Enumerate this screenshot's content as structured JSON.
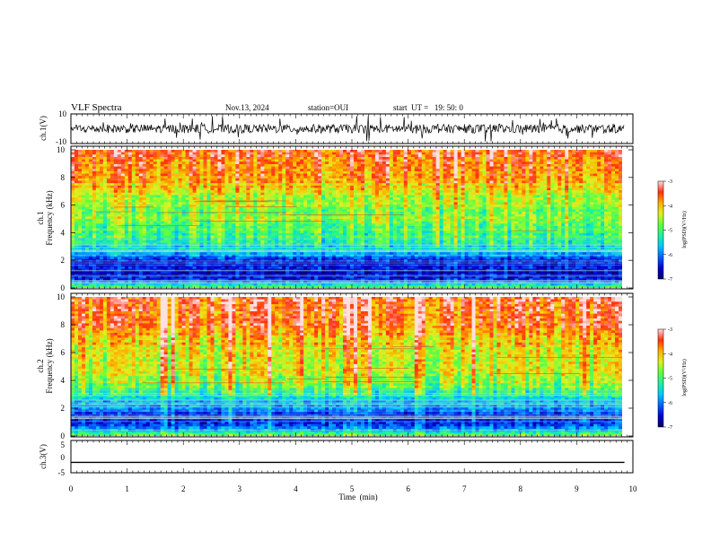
{
  "header": {
    "title": "VLF Spectra",
    "date": "Nov.13, 2024",
    "station": "station=OUI",
    "start": "start  UT =   19: 50: 0"
  },
  "colors": {
    "waveform": "#000000",
    "colormap": [
      "#000066",
      "#0000d0",
      "#0060ff",
      "#00c8ff",
      "#20f0a0",
      "#60ff40",
      "#e0f020",
      "#ffb000",
      "#ff3010",
      "#fde0e0"
    ]
  },
  "chart_data": [
    {
      "type": "line",
      "panel": "ch1-waveform",
      "ylabel": "ch.1(V)",
      "ylim": [
        -10,
        10
      ],
      "yticks": [
        "10",
        "-10"
      ],
      "xlim": [
        0,
        10
      ],
      "x_unit": "min",
      "baseline": 0,
      "amplitude_typical": 3,
      "amplitude_spikes": 9
    },
    {
      "type": "heatmap",
      "panel": "ch1-spectrogram",
      "ylabel": "ch.1\nFrequency (kHz)",
      "ylim": [
        0,
        10
      ],
      "yticks": [
        "0",
        "2",
        "4",
        "6",
        "8",
        "10"
      ],
      "xlim": [
        0,
        9.85
      ],
      "colorbar": {
        "label": "log(PSD)(V²/Hz)",
        "range": [
          -7,
          -3
        ],
        "ticks": [
          "-3",
          "-4",
          "-5",
          "-6",
          "-7"
        ]
      },
      "profile": {
        "freq_khz": [
          0,
          0.5,
          1.0,
          1.5,
          2.0,
          2.5,
          3.0,
          3.5,
          4.0,
          5.0,
          6.0,
          7.0,
          8.0,
          9.0,
          10.0
        ],
        "log_psd": [
          -4.6,
          -6.2,
          -6.5,
          -6.5,
          -6.3,
          -5.8,
          -5.4,
          -5.1,
          -4.9,
          -4.7,
          -4.6,
          -4.2,
          -3.8,
          -3.6,
          -3.5
        ]
      }
    },
    {
      "type": "heatmap",
      "panel": "ch2-spectrogram",
      "ylabel": "ch.2\nFrequency (kHz)",
      "ylim": [
        0,
        10
      ],
      "yticks": [
        "0",
        "2",
        "4",
        "6",
        "8",
        "10"
      ],
      "xlim": [
        0,
        9.85
      ],
      "colorbar": {
        "label": "log(PSD)(V²/Hz)",
        "range": [
          -7,
          -3
        ],
        "ticks": [
          "-3",
          "-4",
          "-5",
          "-6",
          "-7"
        ]
      },
      "profile": {
        "freq_khz": [
          0,
          0.5,
          1.0,
          1.5,
          2.0,
          2.5,
          3.0,
          3.5,
          4.0,
          5.0,
          6.0,
          7.0,
          8.0,
          9.0,
          10.0
        ],
        "log_psd": [
          -4.8,
          -6.0,
          -6.3,
          -6.4,
          -6.0,
          -5.6,
          -5.2,
          -4.9,
          -4.6,
          -4.4,
          -4.3,
          -4.0,
          -3.7,
          -3.6,
          -3.5
        ]
      }
    },
    {
      "type": "line",
      "panel": "ch3-waveform",
      "ylabel": "ch.3(V)",
      "ylim": [
        -5,
        5
      ],
      "yticks": [
        "5",
        "0",
        "-5"
      ],
      "xlim": [
        0,
        10
      ],
      "constant_value": -1.8
    }
  ],
  "xaxis": {
    "label": "Time  (min)",
    "ticks": [
      "0",
      "1",
      "2",
      "3",
      "4",
      "5",
      "6",
      "7",
      "8",
      "9",
      "10"
    ]
  }
}
